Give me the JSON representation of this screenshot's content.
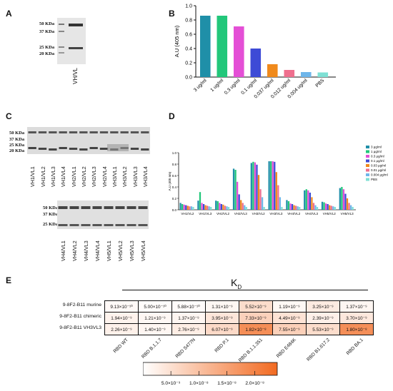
{
  "panels": {
    "A": "A",
    "B": "B",
    "C": "C",
    "D": "D",
    "E": "E"
  },
  "blot_a": {
    "mw_labels": [
      "50 KDa",
      "37 KDa",
      "25 KDa",
      "20 KDa"
    ],
    "lane_label": "VH/VL"
  },
  "blot_c_top": {
    "mw_labels": [
      "50 KDa",
      "37 KDa",
      "25 KDa",
      "20 KDa"
    ],
    "lanes": [
      "VH1/VL1",
      "VH1/VL2",
      "VH1/VL3",
      "VH1/VL4",
      "VH2/VL1",
      "VH2/VL2",
      "VH2/VL3",
      "VH2/VL4",
      "VH3/VL1",
      "VH3/VL2",
      "VH3/VL3",
      "VH3/VL4"
    ]
  },
  "blot_c_bottom": {
    "mw_labels": [
      "50 KDa",
      "37 KDa",
      "25 KDa"
    ],
    "lanes": [
      "VH4/VL1",
      "VH4/VL2",
      "VH4/VL3",
      "VH4/VL4",
      "VH5/VL1",
      "VH5/VL2",
      "VH5/VL3",
      "VH5/VL4"
    ]
  },
  "chart_data": [
    {
      "panel": "B",
      "type": "bar",
      "categories": [
        "3 ug/ml",
        "1 ug/ml",
        "0.3 ug/ml",
        "0.1 ug/ml",
        "0.037 ug/ml",
        "0.012 ug/ml",
        "0.004 ug/ml",
        "PBS"
      ],
      "values": [
        0.86,
        0.86,
        0.71,
        0.4,
        0.18,
        0.1,
        0.07,
        0.065
      ],
      "colors": [
        "#1f8fa8",
        "#22c77a",
        "#e44fd6",
        "#3d4bd6",
        "#f08a1c",
        "#ef6f8e",
        "#6fb6ea",
        "#7fe0d4"
      ],
      "ylabel": "A.U (405 nm)",
      "ylim": [
        0,
        1.0
      ],
      "yticks": [
        "0.0",
        "0.2",
        "0.4",
        "0.6",
        "0.8",
        "1.0"
      ]
    },
    {
      "panel": "D",
      "type": "bar",
      "categories": [
        "VH1/VL2",
        "VH1/VL3",
        "VH2/VL2",
        "VH2/VL3",
        "VH3/VL2",
        "VH3/VL3",
        "VH4/VL2",
        "VH4/VL3",
        "VH5/VL2",
        "VH5/VL3"
      ],
      "ylabel": "A.U (405 nm)",
      "ylim": [
        0,
        1.0
      ],
      "yticks": [
        "0.0",
        "0.2",
        "0.4",
        "0.6",
        "0.8",
        "1.0"
      ],
      "legend": "top-right",
      "series": [
        {
          "name": "3 μg/ml",
          "color": "#1f8fa8",
          "values": [
            0.12,
            0.16,
            0.16,
            0.72,
            0.82,
            0.85,
            0.17,
            0.34,
            0.14,
            0.38
          ]
        },
        {
          "name": "1 μg/ml",
          "color": "#22c77a",
          "values": [
            0.1,
            0.31,
            0.15,
            0.7,
            0.84,
            0.85,
            0.15,
            0.36,
            0.13,
            0.4
          ]
        },
        {
          "name": "0.3 μg/ml",
          "color": "#e44fd6",
          "values": [
            0.09,
            0.12,
            0.12,
            0.49,
            0.83,
            0.85,
            0.11,
            0.34,
            0.11,
            0.36
          ]
        },
        {
          "name": "0.1 μg/ml",
          "color": "#3d4bd6",
          "values": [
            0.08,
            0.1,
            0.1,
            0.27,
            0.79,
            0.84,
            0.1,
            0.3,
            0.1,
            0.28
          ]
        },
        {
          "name": "0.03 μg/ml",
          "color": "#f08a1c",
          "values": [
            0.07,
            0.08,
            0.09,
            0.17,
            0.61,
            0.66,
            0.08,
            0.22,
            0.08,
            0.2
          ]
        },
        {
          "name": "0.01 μg/ml",
          "color": "#ef6f8e",
          "values": [
            0.06,
            0.07,
            0.07,
            0.12,
            0.36,
            0.43,
            0.07,
            0.12,
            0.07,
            0.12
          ]
        },
        {
          "name": "0.004 μg/ml",
          "color": "#6fb6ea",
          "values": [
            0.06,
            0.06,
            0.06,
            0.08,
            0.22,
            0.22,
            0.06,
            0.08,
            0.06,
            0.08
          ]
        },
        {
          "name": "PBS",
          "color": "#7fe0d4",
          "values": [
            0.05,
            0.05,
            0.05,
            0.05,
            0.05,
            0.05,
            0.05,
            0.05,
            0.05,
            0.05
          ]
        }
      ]
    },
    {
      "panel": "E",
      "type": "heatmap",
      "title_main": "K",
      "title_sub": "D",
      "rows": [
        "9-8F2-B11 murine",
        "9-8F2-B11 chimeric",
        "9-8F2-B11 VH3VL3"
      ],
      "columns": [
        "RBD WT",
        "RBD B.1.1.7",
        "RBD S477N",
        "RBD P.1",
        "RBD B.1.1.351",
        "RBD E484K",
        "RBD B1.617.2",
        "RBD BA.1"
      ],
      "cells": [
        [
          "9.13×10⁻¹⁰",
          "5.00×10⁻¹⁰",
          "5.88×10⁻¹⁰",
          "1.31×10⁻⁹",
          "5.52×10⁻⁹",
          "1.19×10⁻⁹",
          "3.25×10⁻⁹",
          "1.37×10⁻⁹"
        ],
        [
          "1.94×10⁻⁹",
          "1.21×10⁻⁹",
          "1.37×10⁻⁹",
          "3.95×10⁻⁹",
          "7.33×10⁻⁹",
          "4.49×10⁻⁹",
          "2.39×10⁻⁹",
          "3.70×10⁻⁹"
        ],
        [
          "2.26×10⁻⁹",
          "1.40×10⁻⁹",
          "2.76×10⁻⁹",
          "6.07×10⁻⁹",
          "1.82×10⁻⁸",
          "7.55×10⁻⁹",
          "5.53×10⁻⁹",
          "1.80×10⁻⁸"
        ]
      ],
      "values": [
        [
          9.13e-10,
          5e-10,
          5.88e-10,
          1.31e-09,
          5.52e-09,
          1.19e-09,
          3.25e-09,
          1.37e-09
        ],
        [
          1.94e-09,
          1.21e-09,
          1.37e-09,
          3.95e-09,
          7.33e-09,
          4.49e-09,
          2.39e-09,
          3.7e-09
        ],
        [
          2.26e-09,
          1.4e-09,
          2.76e-09,
          6.07e-09,
          1.82e-08,
          7.55e-09,
          5.53e-09,
          1.8e-08
        ]
      ],
      "colorbar": {
        "range": [
          0,
          2.4e-08
        ],
        "ticks": [
          5e-09,
          1e-08,
          1.5e-08,
          2e-08
        ],
        "tick_labels": [
          "5.0×10⁻⁹",
          "1.0×10⁻⁸",
          "1.5×10⁻⁸",
          "2.0×10⁻⁸"
        ],
        "color_low": "#ffffff",
        "color_high": "#f26a21"
      }
    }
  ]
}
